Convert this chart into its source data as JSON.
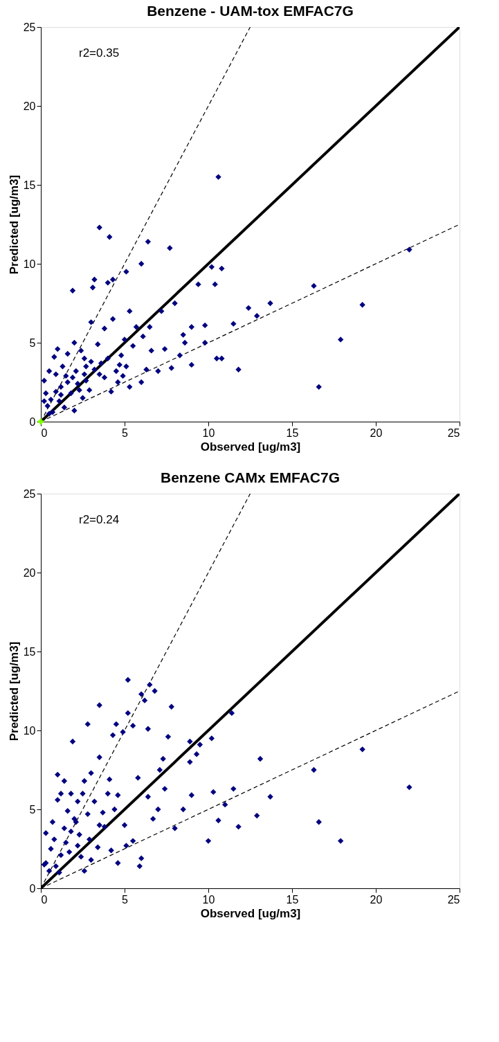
{
  "chart_data": [
    {
      "type": "scatter",
      "title": "Benzene - UAM-tox EMFAC7G",
      "xlabel": "Observed  [ug/m3]",
      "ylabel": "Predicted [ug/m3]",
      "xlim": [
        0,
        25
      ],
      "ylim": [
        0,
        25
      ],
      "xticks": [
        0,
        5,
        10,
        15,
        20,
        25
      ],
      "yticks": [
        0,
        5,
        10,
        15,
        20,
        25
      ],
      "grid": false,
      "annotations": [
        "r2=0.35"
      ],
      "series": [
        {
          "type": "line",
          "color": "#000000",
          "line_style": "solid",
          "x": [
            0,
            25
          ],
          "values": [
            0,
            25
          ]
        },
        {
          "type": "line",
          "color": "#000000",
          "line_style": "dashed",
          "x": [
            0,
            12.5
          ],
          "values": [
            0,
            25
          ]
        },
        {
          "type": "line",
          "color": "#000000",
          "line_style": "dashed",
          "x": [
            0,
            25
          ],
          "values": [
            0,
            12.5
          ]
        },
        {
          "color": "#000080",
          "marker": "diamond",
          "x": [
            10.6,
            3.5,
            4.1,
            6.4,
            7.7,
            1.9,
            3.2,
            3.1,
            4.0,
            4.3,
            5.1,
            6.0,
            9.4,
            10.2,
            10.8,
            10.4,
            22.0,
            16.3,
            19.2,
            17.9,
            16.6,
            13.7,
            12.4,
            12.9,
            11.8,
            11.5,
            10.8,
            10.5,
            9.8,
            9.0,
            8.5,
            8.0,
            7.2,
            6.5,
            6.1,
            5.5,
            5.1,
            4.6,
            4.2,
            3.5,
            3.0,
            2.6,
            2.2,
            1.8,
            1.5,
            1.2,
            0.9,
            0.6,
            0.4,
            0.3,
            0.2,
            0.5,
            0.8,
            1.0,
            1.3,
            1.6,
            2.0,
            2.4,
            2.7,
            3.0,
            3.4,
            3.8,
            4.3,
            4.8,
            5.3,
            5.7,
            6.6,
            7.0,
            7.8,
            8.3,
            9.0,
            1.4,
            0.7,
            2.5,
            2.9,
            3.8,
            4.7,
            5.3,
            6.3,
            1.1,
            2.3,
            1.9,
            2.7,
            3.2,
            4.0,
            4.5,
            5.0,
            0.2,
            0.9,
            1.6,
            2.1,
            2.6,
            3.6,
            4.9,
            6.0,
            7.4,
            8.6,
            9.8,
            2.0,
            1.2,
            0.5
          ],
          "values": [
            15.5,
            12.3,
            11.7,
            11.4,
            11.0,
            8.3,
            9.0,
            8.5,
            8.8,
            9.0,
            9.5,
            10.0,
            8.7,
            9.8,
            9.7,
            8.7,
            10.9,
            8.6,
            7.4,
            5.2,
            2.2,
            7.5,
            7.2,
            6.7,
            3.3,
            6.2,
            4.0,
            4.0,
            5.0,
            6.0,
            5.5,
            7.5,
            7.0,
            6.0,
            5.4,
            4.8,
            3.5,
            2.5,
            1.9,
            3.0,
            3.8,
            3.0,
            2.4,
            1.8,
            2.9,
            2.2,
            1.9,
            1.4,
            1.0,
            1.8,
            2.6,
            3.2,
            4.1,
            4.6,
            3.5,
            4.3,
            5.0,
            4.5,
            3.5,
            6.3,
            4.9,
            5.9,
            6.5,
            4.2,
            7.0,
            6.0,
            4.5,
            3.2,
            3.4,
            4.2,
            3.6,
            0.9,
            0.6,
            1.5,
            2.0,
            2.8,
            3.6,
            2.2,
            3.3,
            1.3,
            2.0,
            2.8,
            2.6,
            3.3,
            4.0,
            3.2,
            5.2,
            1.3,
            3.0,
            2.5,
            3.2,
            4.0,
            3.7,
            2.9,
            2.5,
            4.6,
            5.0,
            6.1,
            0.7,
            1.7,
            0.5
          ]
        },
        {
          "type": "scatter",
          "color": "#7fff00",
          "marker": "cross",
          "x": [
            0
          ],
          "values": [
            0
          ]
        }
      ]
    },
    {
      "type": "scatter",
      "title": "Benzene  CAMx EMFAC7G",
      "xlabel": "Observed [ug/m3]",
      "ylabel": "Predicted [ug/m3]",
      "xlim": [
        0,
        25
      ],
      "ylim": [
        0,
        25
      ],
      "xticks": [
        0,
        5,
        10,
        15,
        20,
        25
      ],
      "yticks": [
        0,
        5,
        10,
        15,
        20,
        25
      ],
      "grid": false,
      "annotations": [
        "r2=0.24"
      ],
      "series": [
        {
          "type": "line",
          "color": "#000000",
          "line_style": "solid",
          "x": [
            0,
            25
          ],
          "values": [
            0,
            25
          ]
        },
        {
          "type": "line",
          "color": "#000000",
          "line_style": "dashed",
          "x": [
            0,
            12.5
          ],
          "values": [
            0,
            25
          ]
        },
        {
          "type": "line",
          "color": "#000000",
          "line_style": "dashed",
          "x": [
            0,
            25
          ],
          "values": [
            0,
            12.5
          ]
        },
        {
          "color": "#000080",
          "marker": "diamond",
          "x": [
            5.2,
            6.5,
            6.8,
            6.0,
            6.2,
            3.5,
            7.8,
            5.2,
            11.4,
            4.5,
            2.8,
            5.5,
            6.4,
            4.3,
            4.9,
            1.9,
            7.6,
            8.9,
            10.2,
            9.5,
            13.1,
            19.2,
            16.3,
            22.0,
            13.7,
            12.9,
            11.8,
            16.6,
            17.9,
            10.0,
            10.6,
            11.0,
            11.5,
            10.3,
            9.0,
            8.5,
            8.0,
            7.4,
            7.1,
            6.4,
            6.0,
            5.9,
            5.5,
            5.0,
            4.6,
            4.1,
            3.5,
            3.0,
            2.6,
            2.2,
            1.8,
            1.4,
            1.0,
            0.7,
            0.3,
            0.3,
            0.5,
            0.9,
            1.2,
            1.5,
            1.8,
            2.1,
            2.4,
            2.6,
            3.0,
            3.4,
            3.8,
            4.2,
            4.6,
            5.1,
            6.7,
            7.0,
            8.9,
            9.3,
            1.0,
            1.2,
            1.6,
            2.0,
            2.3,
            2.8,
            3.2,
            3.7,
            4.0,
            4.4,
            0.6,
            0.8,
            1.4,
            2.2,
            2.9,
            3.5,
            0.2,
            1.1,
            1.7,
            2.5,
            5.8,
            7.3
          ],
          "values": [
            13.2,
            12.9,
            12.5,
            12.3,
            11.9,
            11.6,
            11.5,
            11.1,
            11.1,
            10.4,
            10.4,
            10.3,
            10.1,
            9.7,
            9.9,
            9.3,
            9.6,
            9.3,
            9.5,
            9.1,
            8.2,
            8.8,
            7.5,
            6.4,
            5.8,
            4.6,
            3.9,
            4.2,
            3.0,
            3.0,
            4.3,
            5.3,
            6.3,
            6.1,
            5.9,
            5.0,
            3.8,
            6.3,
            7.5,
            5.8,
            1.9,
            1.4,
            3.0,
            4.0,
            5.9,
            6.9,
            8.3,
            7.3,
            6.8,
            5.5,
            6.0,
            6.8,
            5.6,
            4.2,
            3.5,
            1.6,
            1.1,
            1.4,
            2.1,
            2.9,
            3.6,
            4.2,
            2.0,
            1.1,
            1.8,
            2.6,
            3.9,
            2.4,
            1.6,
            2.7,
            4.4,
            5.0,
            8.0,
            8.5,
            7.2,
            6.0,
            4.9,
            4.4,
            3.4,
            4.7,
            5.5,
            4.8,
            6.0,
            5.0,
            2.5,
            3.1,
            3.8,
            2.7,
            3.1,
            4.0,
            1.5,
            1.0,
            2.3,
            6.0,
            7.0,
            8.2
          ]
        }
      ]
    }
  ]
}
